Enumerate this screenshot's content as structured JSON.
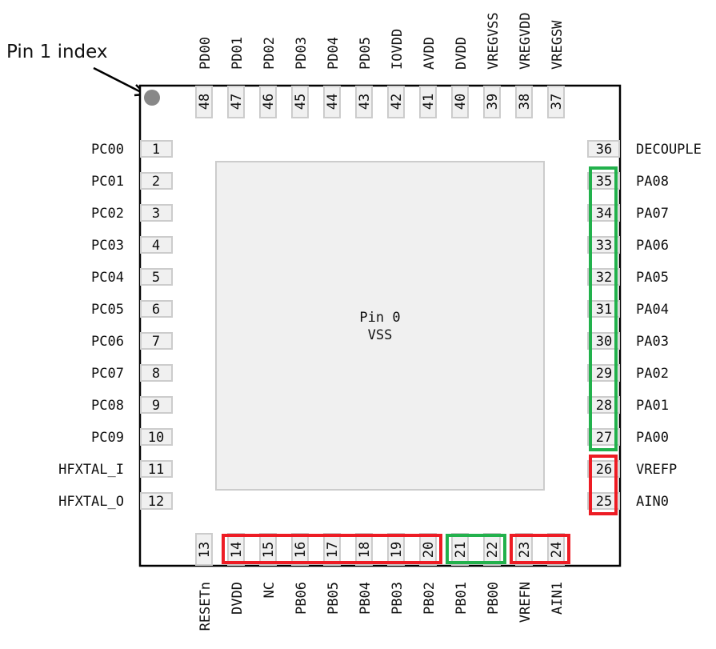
{
  "annotation": {
    "label": "Pin 1 index"
  },
  "package": {
    "type": "QFN48",
    "body_color": "#ffffff",
    "outline_color": "#000000",
    "pad_fill": "#f0f0f0",
    "pad_stroke": "#cccccc",
    "index_dot_color": "#888888"
  },
  "center_pad": {
    "line1": "Pin 0",
    "line2": "VSS"
  },
  "pins": {
    "left": [
      {
        "num": "1",
        "name": "PC00"
      },
      {
        "num": "2",
        "name": "PC01"
      },
      {
        "num": "3",
        "name": "PC02"
      },
      {
        "num": "4",
        "name": "PC03"
      },
      {
        "num": "5",
        "name": "PC04"
      },
      {
        "num": "6",
        "name": "PC05"
      },
      {
        "num": "7",
        "name": "PC06"
      },
      {
        "num": "8",
        "name": "PC07"
      },
      {
        "num": "9",
        "name": "PC08"
      },
      {
        "num": "10",
        "name": "PC09"
      },
      {
        "num": "11",
        "name": "HFXTAL_I"
      },
      {
        "num": "12",
        "name": "HFXTAL_O"
      }
    ],
    "bottom": [
      {
        "num": "13",
        "name": "RESETn"
      },
      {
        "num": "14",
        "name": "DVDD"
      },
      {
        "num": "15",
        "name": "NC"
      },
      {
        "num": "16",
        "name": "PB06"
      },
      {
        "num": "17",
        "name": "PB05"
      },
      {
        "num": "18",
        "name": "PB04"
      },
      {
        "num": "19",
        "name": "PB03"
      },
      {
        "num": "20",
        "name": "PB02"
      },
      {
        "num": "21",
        "name": "PB01"
      },
      {
        "num": "22",
        "name": "PB00"
      },
      {
        "num": "23",
        "name": "VREFN"
      },
      {
        "num": "24",
        "name": "AIN1"
      }
    ],
    "right": [
      {
        "num": "25",
        "name": "AIN0"
      },
      {
        "num": "26",
        "name": "VREFP"
      },
      {
        "num": "27",
        "name": "PA00"
      },
      {
        "num": "28",
        "name": "PA01"
      },
      {
        "num": "29",
        "name": "PA02"
      },
      {
        "num": "30",
        "name": "PA03"
      },
      {
        "num": "31",
        "name": "PA04"
      },
      {
        "num": "32",
        "name": "PA05"
      },
      {
        "num": "33",
        "name": "PA06"
      },
      {
        "num": "34",
        "name": "PA07"
      },
      {
        "num": "35",
        "name": "PA08"
      },
      {
        "num": "36",
        "name": "DECOUPLE"
      }
    ],
    "top": [
      {
        "num": "37",
        "name": "VREGSW"
      },
      {
        "num": "38",
        "name": "VREGVDD"
      },
      {
        "num": "39",
        "name": "VREGVSS"
      },
      {
        "num": "40",
        "name": "DVDD"
      },
      {
        "num": "41",
        "name": "AVDD"
      },
      {
        "num": "42",
        "name": "IOVDD"
      },
      {
        "num": "43",
        "name": "PD05"
      },
      {
        "num": "44",
        "name": "PD04"
      },
      {
        "num": "45",
        "name": "PD03"
      },
      {
        "num": "46",
        "name": "PD02"
      },
      {
        "num": "47",
        "name": "PD01"
      },
      {
        "num": "48",
        "name": "PD00"
      }
    ]
  },
  "highlights": [
    {
      "id": "right-green",
      "color": "#22b14c",
      "pins": [
        "27",
        "35"
      ]
    },
    {
      "id": "right-red",
      "color": "#ed1c24",
      "pins": [
        "25",
        "26"
      ]
    },
    {
      "id": "bottom-red-1",
      "color": "#ed1c24",
      "pins": [
        "14",
        "20"
      ]
    },
    {
      "id": "bottom-green",
      "color": "#22b14c",
      "pins": [
        "21",
        "22"
      ]
    },
    {
      "id": "bottom-red-2",
      "color": "#ed1c24",
      "pins": [
        "23",
        "24"
      ]
    }
  ]
}
